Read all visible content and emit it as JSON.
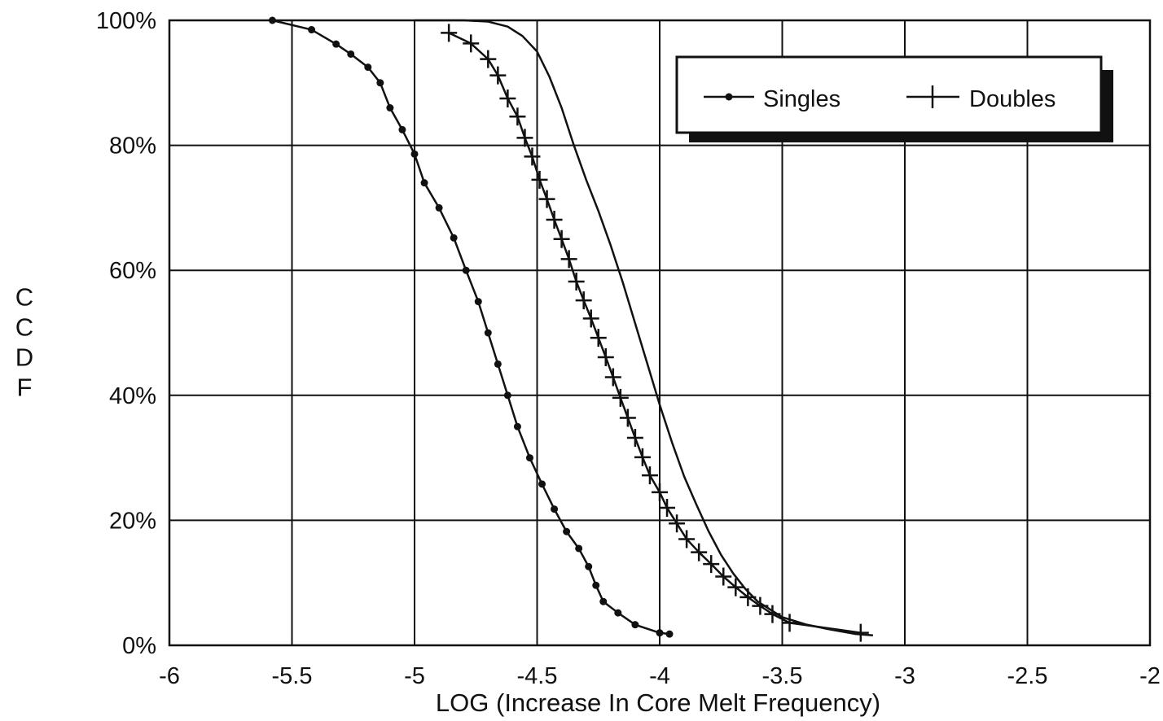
{
  "chart_data": {
    "type": "line",
    "xlabel": "LOG (Increase In Core Melt Frequency)",
    "ylabel": "CCDF",
    "xlim": [
      -6,
      -2
    ],
    "ylim": [
      0,
      100
    ],
    "x_ticks": [
      "-6",
      "-5.5",
      "-5",
      "-4.5",
      "-4",
      "-3.5",
      "-3",
      "-2.5",
      "-2"
    ],
    "y_ticks": [
      "0%",
      "20%",
      "40%",
      "60%",
      "80%",
      "100%"
    ],
    "grid": true,
    "legend_position": "top-right",
    "series": [
      {
        "name": "Singles",
        "marker": "dot",
        "x": [
          -5.58,
          -5.42,
          -5.32,
          -5.26,
          -5.19,
          -5.14,
          -5.1,
          -5.05,
          -5.0,
          -4.96,
          -4.9,
          -4.84,
          -4.79,
          -4.74,
          -4.7,
          -4.66,
          -4.62,
          -4.58,
          -4.53,
          -4.48,
          -4.43,
          -4.38,
          -4.33,
          -4.29,
          -4.26,
          -4.23,
          -4.17,
          -4.1,
          -4.0,
          -3.96
        ],
        "y": [
          100,
          98.5,
          96.2,
          94.6,
          92.5,
          90,
          86,
          82.5,
          78.6,
          74,
          70,
          65.2,
          60,
          55,
          50,
          45,
          40,
          35,
          30,
          25.8,
          21.8,
          18.2,
          15.5,
          12.6,
          9.6,
          7,
          5.2,
          3.3,
          2,
          1.8
        ]
      },
      {
        "name": "Doubles",
        "marker": "plus",
        "x": [
          -4.86,
          -4.77,
          -4.7,
          -4.66,
          -4.62,
          -4.58,
          -4.55,
          -4.52,
          -4.49,
          -4.46,
          -4.43,
          -4.4,
          -4.37,
          -4.34,
          -4.31,
          -4.28,
          -4.25,
          -4.22,
          -4.19,
          -4.16,
          -4.13,
          -4.1,
          -4.07,
          -4.04,
          -4.0,
          -3.97,
          -3.93,
          -3.89,
          -3.84,
          -3.79,
          -3.74,
          -3.69,
          -3.64,
          -3.59,
          -3.54,
          -3.47,
          -3.18
        ],
        "y": [
          98,
          96.3,
          93.8,
          91.2,
          87.5,
          84.6,
          81.2,
          78.2,
          74.5,
          71.4,
          68.1,
          65,
          61.8,
          58.2,
          55.2,
          52.3,
          49.2,
          46.1,
          42.9,
          39.6,
          36.4,
          33.2,
          30.1,
          27.2,
          24.5,
          22,
          19.5,
          17,
          14.9,
          13,
          11,
          9.3,
          7.7,
          6.3,
          5,
          3.6,
          2
        ]
      },
      {
        "name": "",
        "marker": "none",
        "x": [
          -5.0,
          -4.9,
          -4.8,
          -4.7,
          -4.62,
          -4.56,
          -4.5,
          -4.45,
          -4.4,
          -4.35,
          -4.3,
          -4.25,
          -4.2,
          -4.15,
          -4.1,
          -4.05,
          -4.0,
          -3.95,
          -3.9,
          -3.85,
          -3.8,
          -3.75,
          -3.7,
          -3.65,
          -3.6,
          -3.5,
          -3.4,
          -3.3,
          -3.2,
          -3.13
        ],
        "y": [
          100,
          100,
          100,
          99.8,
          99,
          97.5,
          95,
          91,
          86,
          80,
          74.5,
          69.5,
          64,
          58,
          51.5,
          45,
          38.5,
          32.5,
          27,
          22.5,
          18.2,
          14.5,
          11.5,
          9,
          7,
          4.5,
          3.3,
          2.5,
          1.8,
          1.6
        ]
      }
    ]
  }
}
